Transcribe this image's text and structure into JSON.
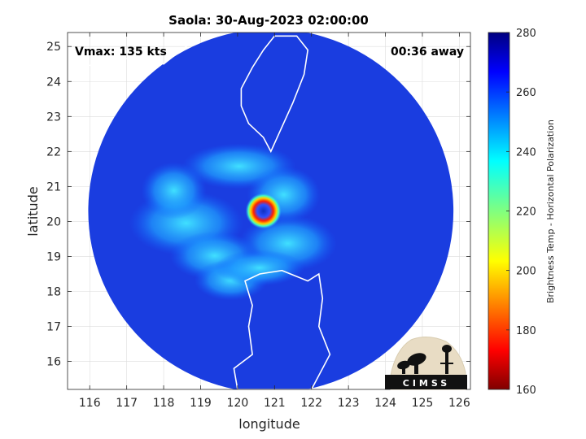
{
  "chart_data": {
    "type": "heatmap",
    "title": "Saola: 30-Aug-2023 02:00:00",
    "xlabel": "longitude",
    "ylabel": "latitude",
    "xlim": [
      115.4,
      126.3
    ],
    "ylim": [
      15.2,
      25.4
    ],
    "xticks": [
      116,
      117,
      118,
      119,
      120,
      121,
      122,
      123,
      124,
      125,
      126
    ],
    "yticks": [
      16,
      17,
      18,
      19,
      20,
      21,
      22,
      23,
      24,
      25
    ],
    "grid": true,
    "annotations": {
      "vmax": "Vmax: 135 kts",
      "time_away": "00:36 away"
    },
    "colorbar": {
      "label": "Brightness Temp - Horizontal Polarization",
      "range": [
        160,
        280
      ],
      "ticks": [
        160,
        180,
        200,
        220,
        240,
        260,
        280
      ],
      "colormap": "jet"
    },
    "storm_center": {
      "lon": 120.7,
      "lat": 20.3
    },
    "swath": {
      "center_lon": 120.9,
      "center_lat": 20.3,
      "radius_deg": 5.2,
      "clipped_below_lat": 15.2
    }
  },
  "logo": {
    "text": "CIMSS"
  }
}
